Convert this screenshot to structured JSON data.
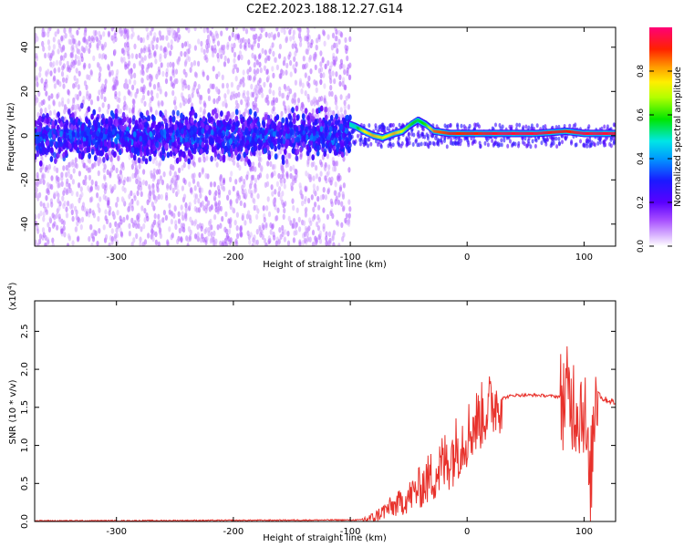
{
  "title": "C2E2.2023.188.12.27.G14",
  "chart_data": [
    {
      "type": "heatmap",
      "xlabel": "Height of straight line (km)",
      "ylabel": "Frequency (Hz)",
      "xlim": [
        -370,
        127
      ],
      "ylim": [
        -50,
        49
      ],
      "xticks": [
        -300,
        -200,
        -100,
        0,
        100
      ],
      "yticks": [
        -40,
        -20,
        0,
        20,
        40
      ],
      "colorbar": {
        "label": "Normalized spectral amplitude",
        "range": [
          0.0,
          1.0
        ],
        "ticks": [
          0.0,
          0.2,
          0.4,
          0.6,
          0.8
        ],
        "tick_labels": [
          "0.0",
          "0.2",
          "0.4",
          "0.6",
          "0.8"
        ]
      },
      "signal_track": [
        {
          "x": -100,
          "freq": 5,
          "amp": 0.5
        },
        {
          "x": -95,
          "freq": 4,
          "amp": 0.5
        },
        {
          "x": -88,
          "freq": 2,
          "amp": 0.75
        },
        {
          "x": -80,
          "freq": 0,
          "amp": 0.8
        },
        {
          "x": -72,
          "freq": -1,
          "amp": 0.7
        },
        {
          "x": -62,
          "freq": 1,
          "amp": 0.8
        },
        {
          "x": -55,
          "freq": 2,
          "amp": 0.7
        },
        {
          "x": -48,
          "freq": 5,
          "amp": 0.6
        },
        {
          "x": -42,
          "freq": 7,
          "amp": 0.55
        },
        {
          "x": -35,
          "freq": 5,
          "amp": 0.6
        },
        {
          "x": -28,
          "freq": 2,
          "amp": 0.85
        },
        {
          "x": -15,
          "freq": 1,
          "amp": 0.9
        },
        {
          "x": 0,
          "freq": 1,
          "amp": 0.9
        },
        {
          "x": 30,
          "freq": 1,
          "amp": 0.95
        },
        {
          "x": 60,
          "freq": 1,
          "amp": 0.95
        },
        {
          "x": 85,
          "freq": 2,
          "amp": 0.9
        },
        {
          "x": 100,
          "freq": 1,
          "amp": 0.95
        },
        {
          "x": 127,
          "freq": 1,
          "amp": 0.95
        }
      ]
    },
    {
      "type": "line",
      "xlabel": "Height of straight line (km)",
      "ylabel": "SNR (10 * v/v)",
      "yscale_label": "(x10^4)",
      "xlim": [
        -370,
        127
      ],
      "ylim": [
        0,
        2.9
      ],
      "xticks": [
        -300,
        -200,
        -100,
        0,
        100
      ],
      "yticks": [
        0.0,
        0.5,
        1.0,
        1.5,
        2.0,
        2.5
      ],
      "ytick_labels": [
        "0.0",
        "0.5",
        "1.0",
        "1.5",
        "2.0",
        "2.5"
      ],
      "series": [
        {
          "color": "#e8322c",
          "x": [
            -370,
            -300,
            -200,
            -110,
            -90,
            -80,
            -70,
            -60,
            -50,
            -40,
            -30,
            -20,
            -10,
            0,
            10,
            20,
            30,
            40,
            60,
            80,
            90,
            95,
            100,
            105,
            110,
            115,
            127
          ],
          "y": [
            0.01,
            0.01,
            0.015,
            0.02,
            0.02,
            0.05,
            0.15,
            0.22,
            0.32,
            0.45,
            0.6,
            0.75,
            0.95,
            1.15,
            1.35,
            1.52,
            1.62,
            1.66,
            1.66,
            1.64,
            1.6,
            1.5,
            1.55,
            0.3,
            1.8,
            1.62,
            1.56
          ]
        }
      ]
    }
  ]
}
